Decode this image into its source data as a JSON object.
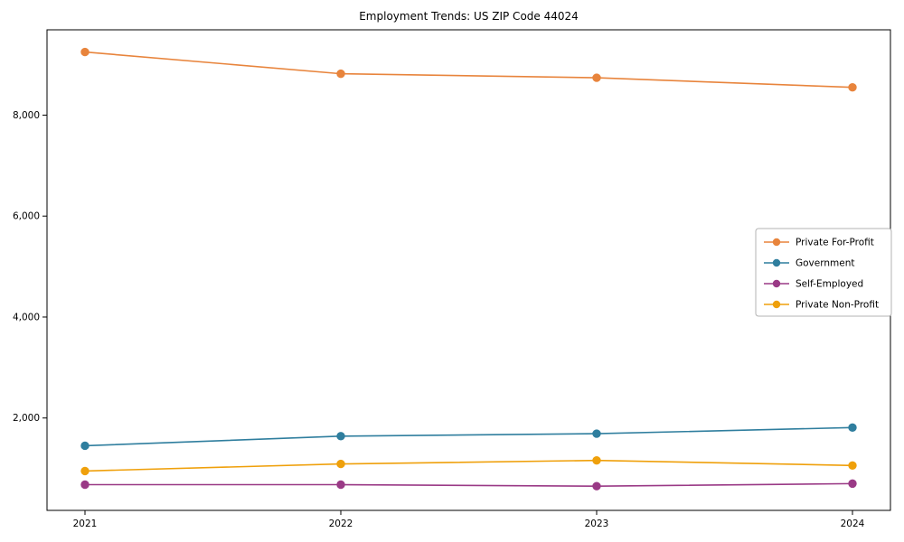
{
  "chart_data": {
    "type": "line",
    "title": "Employment Trends: US ZIP Code 44024",
    "x": [
      2021,
      2022,
      2023,
      2024
    ],
    "series": [
      {
        "name": "Private For-Profit",
        "color": "#e8843c",
        "values": [
          9250,
          8820,
          8740,
          8550
        ]
      },
      {
        "name": "Government",
        "color": "#2f7e9e",
        "values": [
          1450,
          1640,
          1690,
          1810
        ]
      },
      {
        "name": "Self-Employed",
        "color": "#9a3a86",
        "values": [
          680,
          680,
          650,
          700
        ]
      },
      {
        "name": "Private Non-Profit",
        "color": "#efa00b",
        "values": [
          950,
          1090,
          1160,
          1060
        ]
      }
    ],
    "xlabel": "",
    "ylabel": "",
    "ylim": [
      170,
      9690
    ],
    "yticks": [
      2000,
      4000,
      6000,
      8000
    ],
    "ytick_labels": [
      "2,000",
      "4,000",
      "6,000",
      "8,000"
    ],
    "xtick_labels": [
      "2021",
      "2022",
      "2023",
      "2024"
    ],
    "grid": false,
    "legend_position": "center-right",
    "axis_color": "#000000",
    "legend_border_color": "#b3b3b3"
  }
}
